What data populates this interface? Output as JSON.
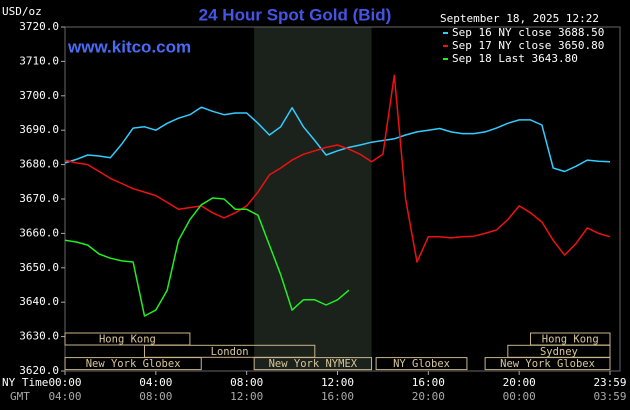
{
  "chart_data": {
    "type": "line",
    "title": "24 Hour Spot Gold (Bid)",
    "watermark": "www.kitco.com",
    "ylabel": "USD/oz",
    "timestamp": "September 18, 2025 12:22",
    "x_row_label": "NY Time",
    "x2_row_label": "GMT",
    "x": [
      0,
      0.5,
      1,
      1.5,
      2,
      2.5,
      3,
      3.5,
      4,
      4.5,
      5,
      5.5,
      6,
      6.5,
      7,
      7.5,
      8,
      8.5,
      9,
      9.5,
      10,
      10.5,
      11,
      11.5,
      12,
      12.5,
      13,
      13.5,
      14,
      14.5,
      15,
      15.5,
      16,
      16.5,
      17,
      17.5,
      18,
      18.5,
      19,
      19.5,
      20,
      20.5,
      21,
      21.5,
      22,
      22.5,
      23,
      23.5,
      24
    ],
    "xlim": [
      0,
      24
    ],
    "xticks": [
      {
        "value": 0,
        "label": "00:00"
      },
      {
        "value": 4,
        "label": "04:00"
      },
      {
        "value": 8,
        "label": "08:00"
      },
      {
        "value": 12,
        "label": "12:00"
      },
      {
        "value": 16,
        "label": "16:00"
      },
      {
        "value": 20,
        "label": "20:00"
      },
      {
        "value": 24,
        "label": "23:59"
      }
    ],
    "x2ticks": [
      "04:00",
      "08:00",
      "12:00",
      "16:00",
      "20:00",
      "00:00",
      "03:59"
    ],
    "ylim": [
      3620,
      3720
    ],
    "yticks": [
      {
        "value": 3620,
        "label": "3620.0"
      },
      {
        "value": 3630,
        "label": "3630.0"
      },
      {
        "value": 3640,
        "label": "3640.0"
      },
      {
        "value": 3650,
        "label": "3650.0"
      },
      {
        "value": 3660,
        "label": "3660.0"
      },
      {
        "value": 3670,
        "label": "3670.0"
      },
      {
        "value": 3680,
        "label": "3680.0"
      },
      {
        "value": 3690,
        "label": "3690.0"
      },
      {
        "value": 3700,
        "label": "3700.0"
      },
      {
        "value": 3710,
        "label": "3710.0"
      },
      {
        "value": 3720,
        "label": "3720.0"
      }
    ],
    "series": [
      {
        "name": "Sep 16 NY close 3688.50",
        "color": "#33ccff",
        "values": [
          3680.5,
          3681.5,
          3682.8,
          3682.5,
          3682,
          3686,
          3690.6,
          3691,
          3690,
          3692,
          3693.5,
          3694.5,
          3696.7,
          3695.5,
          3694.5,
          3695,
          3695,
          3692,
          3688.6,
          3691,
          3696.5,
          3691,
          3687,
          3682.8,
          3684,
          3685,
          3685.7,
          3686.5,
          3687,
          3687.5,
          3688.6,
          3689.5,
          3690,
          3690.5,
          3689.5,
          3689,
          3689,
          3689.5,
          3690.6,
          3692,
          3693,
          3693,
          3691.5,
          3679,
          3678,
          3679.5,
          3681.3,
          3681,
          3680.8
        ]
      },
      {
        "name": "Sep 17 NY close 3650.80",
        "color": "#ee1111",
        "values": [
          3681.3,
          3680.5,
          3680,
          3678,
          3676,
          3674.5,
          3673,
          3672,
          3671,
          3669,
          3667,
          3667.5,
          3668,
          3666,
          3664.5,
          3666,
          3668,
          3672,
          3677,
          3679,
          3681.3,
          3683,
          3684,
          3685,
          3685.7,
          3684.5,
          3683,
          3680.8,
          3683,
          3706,
          3670,
          3651.7,
          3659,
          3659,
          3658.7,
          3659,
          3659.2,
          3660,
          3661,
          3664,
          3668,
          3666,
          3663.3,
          3658,
          3653.7,
          3657,
          3661.6,
          3660,
          3659
        ]
      },
      {
        "name": "Sep 18 Last 3643.80",
        "color": "#22ee22",
        "values": [
          3658,
          3657.5,
          3656.6,
          3654,
          3652.8,
          3652,
          3651.7,
          3636,
          3637.7,
          3643.5,
          3658,
          3664,
          3668.3,
          3670.3,
          3670,
          3667,
          3667,
          3665.3,
          3656.6,
          3648,
          3637.7,
          3640.7,
          3640.7,
          3639.2,
          3640.7,
          3643.5,
          null,
          null,
          null,
          null,
          null,
          null,
          null,
          null,
          null,
          null,
          null,
          null,
          null,
          null,
          null,
          null,
          null,
          null,
          null,
          null,
          null,
          null,
          null
        ]
      }
    ],
    "sessions": [
      {
        "label": "Hong Kong",
        "start": 0,
        "end": 5.5,
        "row": 0
      },
      {
        "label": "Hong Kong",
        "start": 20.5,
        "end": 24,
        "row": 0
      },
      {
        "label": "London",
        "start": 3.5,
        "end": 11,
        "row": 1
      },
      {
        "label": "Sydney",
        "start": 19.5,
        "end": 24,
        "row": 1
      },
      {
        "label": "New York Globex",
        "start": 0,
        "end": 6,
        "row": 2
      },
      {
        "label": "New York NYMEX",
        "start": 8.33,
        "end": 13.5,
        "row": 2
      },
      {
        "label": "NY Globex",
        "start": 13.7,
        "end": 17.7,
        "row": 2
      },
      {
        "label": "New York Globex",
        "start": 18.5,
        "end": 24,
        "row": 2
      }
    ],
    "highlight_session": 5
  }
}
